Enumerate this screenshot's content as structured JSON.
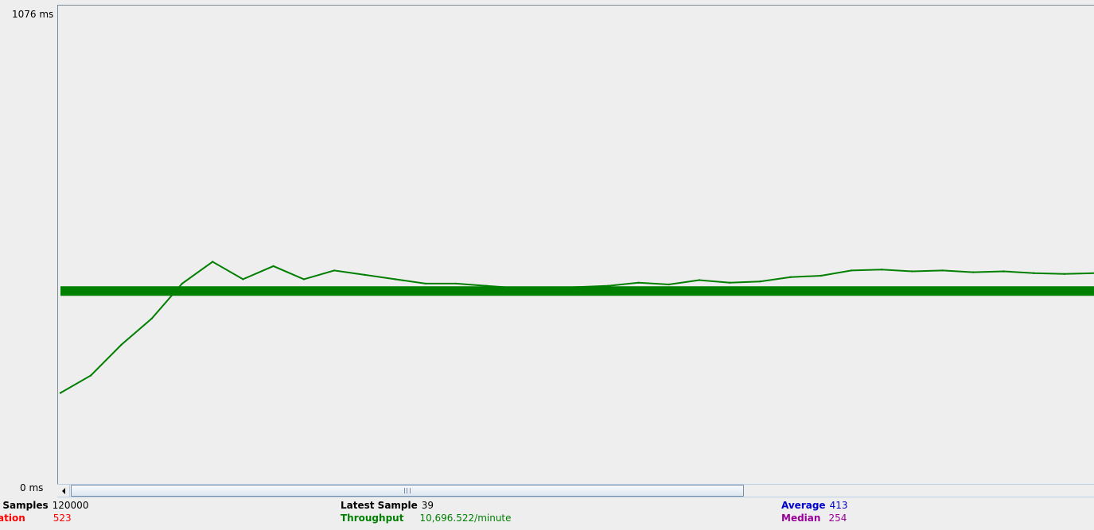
{
  "y_axis": {
    "max_label": "1076  ms",
    "min_label": "0  ms"
  },
  "chart_data": {
    "type": "line",
    "ylim": [
      0,
      1076
    ],
    "y_unit": "ms",
    "series": [
      {
        "color": "#007f00",
        "values": [
          210,
          250,
          320,
          380,
          460,
          510,
          470,
          500,
          470,
          490,
          480,
          470,
          460,
          460,
          455,
          450,
          450,
          452,
          455,
          462,
          458,
          468,
          462,
          465,
          475,
          478,
          490,
          492,
          488,
          490,
          486,
          488,
          484,
          482,
          484
        ]
      },
      {
        "color": "#007f00",
        "values": [
          443,
          443,
          443,
          443,
          443,
          443,
          443,
          443,
          443,
          443,
          443,
          443,
          443,
          443,
          443
        ]
      }
    ]
  },
  "scrollbar": {
    "left_arrow": "scroll-left-arrow-icon"
  },
  "stats": {
    "samples_label": "f Samples",
    "samples_value": "120000",
    "deviation_label": "ation",
    "deviation_value": "523",
    "latest_label": "Latest Sample",
    "latest_value": "39",
    "throughput_label": "Throughput",
    "throughput_value": "10,696.522/minute",
    "average_label": "Average",
    "average_value": "413",
    "median_label": "Median",
    "median_value": "254"
  },
  "colors": {
    "throughput": "#008000",
    "deviation": "#ff0000",
    "average": "#0000cc",
    "median": "#990099",
    "data": "#007f00"
  }
}
